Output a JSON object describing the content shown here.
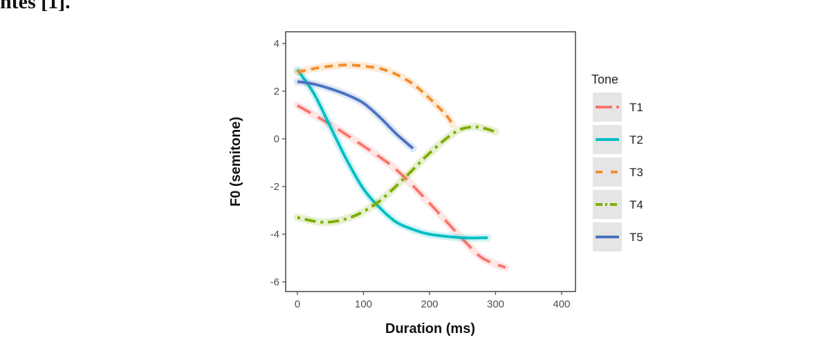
{
  "page": {
    "top_text": "ntes [1]."
  },
  "chart_data": {
    "type": "line",
    "xlabel": "Duration (ms)",
    "ylabel": "F0 (semitone)",
    "xlim": [
      0,
      400
    ],
    "ylim": [
      -6,
      4
    ],
    "xticks": [
      0,
      100,
      200,
      300,
      400
    ],
    "yticks": [
      -6,
      -4,
      -2,
      0,
      2,
      4
    ],
    "grid": false,
    "legend": {
      "title": "Tone",
      "position": "right"
    },
    "series": [
      {
        "name": "T1",
        "color": "#F8766D",
        "dash": "long-dash",
        "x": [
          0,
          50,
          100,
          150,
          200,
          250,
          280,
          315
        ],
        "y": [
          1.4,
          0.6,
          -0.3,
          -1.3,
          -2.7,
          -4.2,
          -5.0,
          -5.4
        ]
      },
      {
        "name": "T2",
        "color": "#00BFC4",
        "dash": "solid",
        "x": [
          0,
          25,
          50,
          75,
          100,
          125,
          150,
          175,
          200,
          250,
          288
        ],
        "y": [
          2.9,
          1.9,
          0.5,
          -0.9,
          -2.1,
          -2.9,
          -3.5,
          -3.8,
          -4.0,
          -4.15,
          -4.15
        ]
      },
      {
        "name": "T3",
        "color": "#F28E2B",
        "dash": "dash",
        "x": [
          0,
          25,
          50,
          75,
          100,
          125,
          150,
          175,
          200,
          225,
          235
        ],
        "y": [
          2.8,
          2.95,
          3.05,
          3.1,
          3.05,
          2.95,
          2.7,
          2.3,
          1.7,
          1.0,
          0.6
        ]
      },
      {
        "name": "T4",
        "color": "#7CAE00",
        "dash": "dot-dash",
        "x": [
          0,
          40,
          80,
          120,
          160,
          200,
          240,
          270,
          300
        ],
        "y": [
          -3.3,
          -3.5,
          -3.3,
          -2.7,
          -1.7,
          -0.6,
          0.3,
          0.5,
          0.3
        ]
      },
      {
        "name": "T5",
        "color": "#4B72C2",
        "dash": "solid",
        "x": [
          0,
          25,
          50,
          75,
          100,
          125,
          150,
          175
        ],
        "y": [
          2.4,
          2.3,
          2.1,
          1.85,
          1.5,
          0.9,
          0.2,
          -0.4
        ]
      }
    ]
  }
}
